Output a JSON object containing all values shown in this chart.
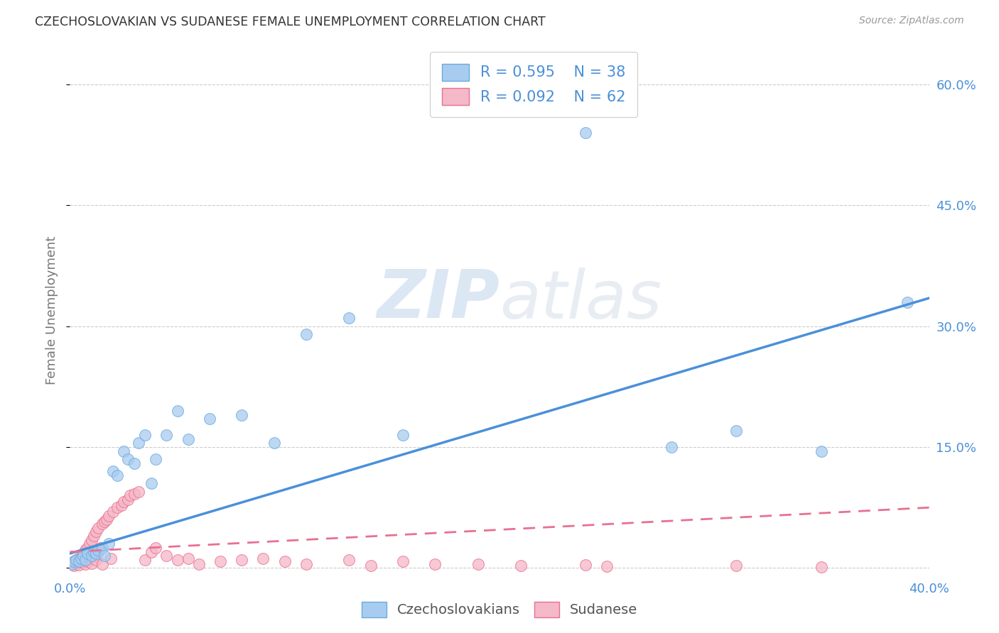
{
  "title": "CZECHOSLOVAKIAN VS SUDANESE FEMALE UNEMPLOYMENT CORRELATION CHART",
  "source": "Source: ZipAtlas.com",
  "ylabel": "Female Unemployment",
  "yticks": [
    0.0,
    0.15,
    0.3,
    0.45,
    0.6
  ],
  "xlim": [
    0.0,
    0.4
  ],
  "ylim": [
    -0.01,
    0.65
  ],
  "blue_scatter_color": "#A8CCF0",
  "blue_scatter_edge": "#6AAADE",
  "pink_scatter_color": "#F5B8C8",
  "pink_scatter_edge": "#E87090",
  "blue_line_color": "#4A90D9",
  "pink_line_color": "#E87090",
  "blue_line_start_y": 0.018,
  "blue_line_end_y": 0.335,
  "pink_line_start_y": 0.02,
  "pink_line_end_y": 0.075,
  "watermark_color": "#D5E5F5",
  "grid_color": "#CCCCCC",
  "background_color": "#FFFFFF",
  "tick_label_color": "#4A90D9",
  "ylabel_color": "#777777",
  "title_color": "#333333",
  "source_color": "#999999",
  "legend_text_color": "#4A90D9",
  "bottom_legend_color": "#555555",
  "blue_x": [
    0.001,
    0.002,
    0.003,
    0.004,
    0.005,
    0.006,
    0.007,
    0.008,
    0.01,
    0.011,
    0.012,
    0.013,
    0.015,
    0.016,
    0.018,
    0.02,
    0.022,
    0.025,
    0.027,
    0.03,
    0.032,
    0.035,
    0.038,
    0.04,
    0.045,
    0.05,
    0.055,
    0.065,
    0.08,
    0.095,
    0.11,
    0.13,
    0.155,
    0.24,
    0.28,
    0.31,
    0.35,
    0.39
  ],
  "blue_y": [
    0.005,
    0.008,
    0.01,
    0.008,
    0.012,
    0.015,
    0.01,
    0.018,
    0.015,
    0.02,
    0.018,
    0.022,
    0.025,
    0.015,
    0.03,
    0.12,
    0.115,
    0.145,
    0.135,
    0.13,
    0.155,
    0.165,
    0.105,
    0.135,
    0.165,
    0.195,
    0.16,
    0.185,
    0.19,
    0.155,
    0.29,
    0.31,
    0.165,
    0.54,
    0.15,
    0.17,
    0.145,
    0.33
  ],
  "pink_x": [
    0.001,
    0.002,
    0.002,
    0.003,
    0.003,
    0.004,
    0.004,
    0.005,
    0.005,
    0.006,
    0.006,
    0.007,
    0.007,
    0.008,
    0.008,
    0.009,
    0.009,
    0.01,
    0.01,
    0.011,
    0.011,
    0.012,
    0.012,
    0.013,
    0.013,
    0.014,
    0.015,
    0.015,
    0.016,
    0.017,
    0.018,
    0.019,
    0.02,
    0.022,
    0.024,
    0.025,
    0.027,
    0.028,
    0.03,
    0.032,
    0.035,
    0.038,
    0.04,
    0.045,
    0.05,
    0.055,
    0.06,
    0.07,
    0.08,
    0.09,
    0.1,
    0.11,
    0.13,
    0.14,
    0.155,
    0.17,
    0.19,
    0.21,
    0.24,
    0.25,
    0.31,
    0.35
  ],
  "pink_y": [
    0.005,
    0.003,
    0.008,
    0.006,
    0.01,
    0.004,
    0.012,
    0.007,
    0.015,
    0.01,
    0.018,
    0.005,
    0.022,
    0.008,
    0.025,
    0.012,
    0.03,
    0.006,
    0.035,
    0.015,
    0.04,
    0.01,
    0.045,
    0.02,
    0.05,
    0.025,
    0.055,
    0.005,
    0.058,
    0.06,
    0.065,
    0.012,
    0.07,
    0.075,
    0.078,
    0.082,
    0.085,
    0.09,
    0.092,
    0.095,
    0.01,
    0.02,
    0.025,
    0.015,
    0.01,
    0.012,
    0.005,
    0.008,
    0.01,
    0.012,
    0.008,
    0.005,
    0.01,
    0.003,
    0.008,
    0.005,
    0.005,
    0.003,
    0.004,
    0.002,
    0.003,
    0.001
  ]
}
